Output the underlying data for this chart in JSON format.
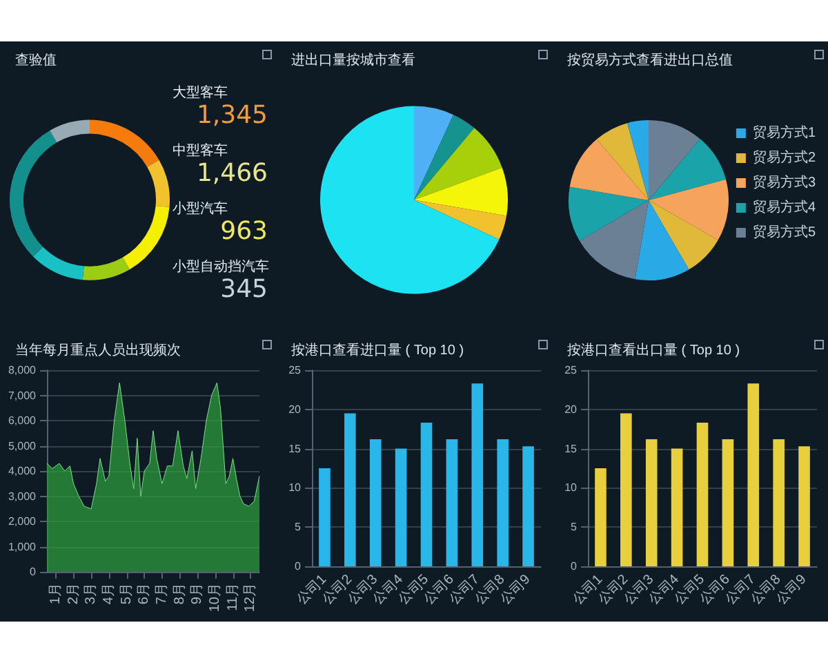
{
  "chart_data": [
    {
      "type": "donut",
      "title": "查验值",
      "categories": [
        null,
        null,
        null,
        null,
        null,
        null,
        null
      ],
      "values": [
        16.7,
        9.7,
        15.3,
        9.7,
        11.1,
        29.2,
        8.3
      ],
      "colors": [
        "#f57c0c",
        "#f2c12e",
        "#f5f000",
        "#9ccc14",
        "#19c0c4",
        "#13908e",
        "#98aab4"
      ]
    },
    {
      "type": "other",
      "categories": [
        "大型客车",
        "中型客车",
        "小型汽车",
        "小型自动挡汽车"
      ],
      "values": [
        1345,
        1466,
        963,
        345
      ],
      "value_labels": [
        "1,345",
        "1,466",
        "963",
        "345"
      ],
      "colors": [
        "#f39c3c",
        "#e8e58a",
        "#f0e860",
        "#c9d3dc"
      ]
    },
    {
      "type": "pie",
      "title": "进出口量按城市查看",
      "categories": [
        null,
        null,
        null,
        null,
        null,
        null
      ],
      "values": [
        6.9,
        4.2,
        8.3,
        8.3,
        4.2,
        68.1
      ],
      "colors": [
        "#4fb0f5",
        "#15938f",
        "#a8d00a",
        "#f5f50a",
        "#f2c22e",
        "#1de2f2"
      ]
    },
    {
      "type": "pie",
      "title": "按贸易方式查看进出口总值",
      "categories": [
        "贸易方式5",
        "贸易方式4",
        "贸易方式3",
        "贸易方式2",
        "贸易方式1",
        null,
        null,
        null,
        null,
        null
      ],
      "values": [
        11.1,
        9.7,
        12.5,
        8.3,
        11.1,
        13.9,
        11.1,
        11.1,
        6.9,
        4.3
      ],
      "colors": [
        "#6b7f95",
        "#1aa3a8",
        "#f6a45c",
        "#e0b93a",
        "#29a9e6",
        "#6b7f95",
        "#1aa3a8",
        "#f6a45c",
        "#e0b93a",
        "#29a9e6"
      ],
      "legend": "right"
    },
    {
      "type": "area",
      "title": "当年每月重点人员出现频次",
      "x": [
        0.5,
        0.8,
        1.2,
        1.5,
        1.8,
        2.0,
        2.3,
        2.6,
        3.0,
        3.3,
        3.5,
        3.8,
        4.0,
        4.3,
        4.6,
        4.9,
        5.2,
        5.4,
        5.6,
        5.8,
        6.0,
        6.3,
        6.5,
        6.7,
        7.0,
        7.3,
        7.6,
        7.9,
        8.2,
        8.4,
        8.7,
        8.9,
        9.2,
        9.5,
        9.8,
        10.1,
        10.3,
        10.6,
        10.8,
        11.0,
        11.2,
        11.4,
        11.6,
        11.9,
        12.2,
        12.5
      ],
      "values": [
        4300,
        4100,
        4300,
        4000,
        4200,
        3500,
        3000,
        2600,
        2500,
        3500,
        4500,
        3600,
        3800,
        6000,
        7500,
        6000,
        4200,
        3300,
        5300,
        3000,
        4000,
        4300,
        5600,
        4500,
        3500,
        4200,
        4200,
        5600,
        4200,
        3700,
        4800,
        3300,
        4500,
        6000,
        7000,
        7500,
        6500,
        3500,
        3800,
        4500,
        3700,
        3000,
        2700,
        2600,
        2800,
        3800
      ],
      "color": "#2e9a3c",
      "xlim": [
        0.5,
        12.5
      ],
      "xticks": [
        {
          "value": 1,
          "label": "1月"
        },
        {
          "value": 2,
          "label": "2月"
        },
        {
          "value": 3,
          "label": "3月"
        },
        {
          "value": 4,
          "label": "4月"
        },
        {
          "value": 5,
          "label": "5月"
        },
        {
          "value": 6,
          "label": "6月"
        },
        {
          "value": 7,
          "label": "7月"
        },
        {
          "value": 8,
          "label": "8月"
        },
        {
          "value": 9,
          "label": "9月"
        },
        {
          "value": 10,
          "label": "10月"
        },
        {
          "value": 11,
          "label": "11月"
        },
        {
          "value": 12,
          "label": "12月"
        }
      ],
      "ylim": [
        0,
        8000
      ],
      "yticks": [
        0,
        {
          "value": 1000,
          "label": "1,000"
        },
        {
          "value": 2000,
          "label": "2,000"
        },
        {
          "value": 3000,
          "label": "3,000"
        },
        {
          "value": 4000,
          "label": "4,000"
        },
        {
          "value": 5000,
          "label": "5,000"
        },
        {
          "value": 6000,
          "label": "6,000"
        },
        {
          "value": 7000,
          "label": "7,000"
        },
        {
          "value": 8000,
          "label": "8,000"
        }
      ],
      "grid": "y",
      "marker": "none"
    },
    {
      "type": "bar",
      "title": "按港口查看进口量 ( Top 10 )",
      "categories": [
        "公司1",
        "公司2",
        "公司3",
        "公司4",
        "公司5",
        "公司6",
        "公司7",
        "公司8",
        "公司9"
      ],
      "values": [
        12.5,
        19.5,
        16.2,
        15,
        18.3,
        16.2,
        23.3,
        16.2,
        15.3
      ],
      "color": "#29b6e8",
      "ylim": [
        0,
        25
      ],
      "yticks": [
        0,
        5,
        10,
        15,
        20,
        25
      ],
      "grid": "y"
    },
    {
      "type": "bar",
      "title": "按港口查看出口量 ( Top 10 )",
      "categories": [
        "公司1",
        "公司2",
        "公司3",
        "公司4",
        "公司5",
        "公司6",
        "公司7",
        "公司8",
        "公司9"
      ],
      "values": [
        12.5,
        19.5,
        16.2,
        15,
        18.3,
        16.2,
        23.3,
        16.2,
        15.3
      ],
      "color": "#e8cf3c",
      "ylim": [
        0,
        25
      ],
      "yticks": [
        0,
        5,
        10,
        15,
        20,
        25
      ],
      "grid": "y"
    }
  ]
}
